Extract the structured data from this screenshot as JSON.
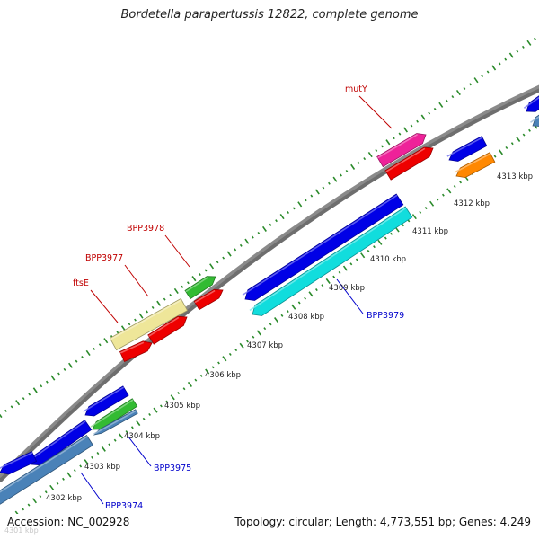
{
  "header": {
    "title": "Bordetella parapertussis 12822, complete genome"
  },
  "footer": {
    "accession": "Accession: NC_002928",
    "summary": "Topology: circular; Length: 4,773,551 bp; Genes: 4,249"
  },
  "colors": {
    "backbone": "#8a8a8a",
    "tick": "#2a8a2a",
    "forward_label": "#c00000",
    "reverse_label": "#0000cc",
    "blue": "#0000e6",
    "red": "#ee0000",
    "magenta": "#ee2299",
    "green": "#33bb33",
    "yellow": "#eee699",
    "cyan": "#11dddd",
    "orange": "#ff8800",
    "steel": "#4a82b8"
  },
  "scale": {
    "unit": "kbp",
    "ticks": [
      {
        "label": "4301 kbp",
        "clipped": true
      },
      {
        "label": "4302 kbp"
      },
      {
        "label": "4303 kbp"
      },
      {
        "label": "4304 kbp"
      },
      {
        "label": "4305 kbp"
      },
      {
        "label": "4306 kbp"
      },
      {
        "label": "4307 kbp"
      },
      {
        "label": "4308 kbp"
      },
      {
        "label": "4309 kbp"
      },
      {
        "label": "4310 kbp"
      },
      {
        "label": "4311 kbp"
      },
      {
        "label": "4312 kbp"
      },
      {
        "label": "4313 kbp"
      }
    ]
  },
  "gene_labels": {
    "mutY": "mutY",
    "BPP3978": "BPP3978",
    "BPP3977": "BPP3977",
    "ftsE": "ftsE",
    "BPP3979": "BPP3979",
    "BPP3975": "BPP3975",
    "BPP3974": "BPP3974"
  }
}
